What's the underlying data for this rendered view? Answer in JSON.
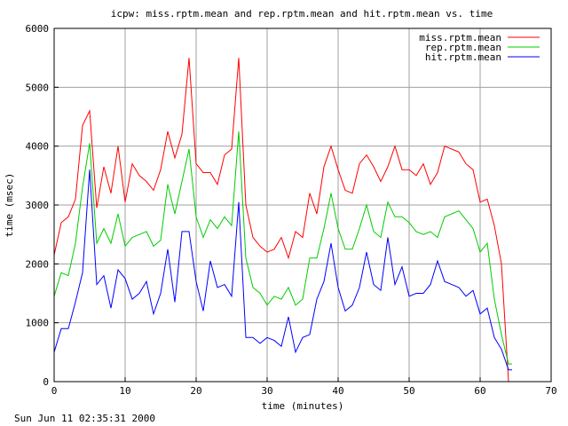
{
  "chart_data": {
    "type": "line",
    "title": "icpw: miss.rptm.mean and rep.rptm.mean and hit.rptm.mean vs. time",
    "xlabel": "time (minutes)",
    "ylabel": "time (msec)",
    "xlim": [
      0,
      70
    ],
    "ylim": [
      0,
      6000
    ],
    "xticks": [
      0,
      10,
      20,
      30,
      40,
      50,
      60,
      70
    ],
    "yticks": [
      0,
      1000,
      2000,
      3000,
      4000,
      5000,
      6000
    ],
    "grid": true,
    "legend_position": "top-right",
    "footer": "Sun Jun 11 02:35:31 2000",
    "series": [
      {
        "name": "miss.rptm.mean",
        "color": "#ff0000",
        "x": [
          0,
          1,
          2,
          3,
          4,
          5,
          6,
          7,
          8,
          9,
          10,
          11,
          12,
          13,
          14,
          15,
          16,
          17,
          18,
          19,
          20,
          21,
          22,
          23,
          24,
          25,
          26,
          27,
          28,
          29,
          30,
          31,
          32,
          33,
          34,
          35,
          36,
          37,
          38,
          39,
          40,
          41,
          42,
          43,
          44,
          45,
          46,
          47,
          48,
          49,
          50,
          51,
          52,
          53,
          54,
          55,
          56,
          57,
          58,
          59,
          60,
          61,
          62,
          63,
          64,
          64.5
        ],
        "values": [
          2150,
          2700,
          2800,
          3100,
          4350,
          4600,
          2950,
          3650,
          3200,
          4000,
          3050,
          3700,
          3500,
          3400,
          3250,
          3600,
          4250,
          3800,
          4200,
          5500,
          3700,
          3550,
          3550,
          3350,
          3850,
          3950,
          5500,
          3000,
          2450,
          2300,
          2200,
          2250,
          2450,
          2100,
          2550,
          2450,
          3200,
          2850,
          3650,
          4000,
          3600,
          3250,
          3200,
          3700,
          3850,
          3650,
          3400,
          3650,
          4000,
          3600,
          3600,
          3500,
          3700,
          3350,
          3550,
          4000,
          3950,
          3900,
          3700,
          3600,
          3050,
          3100,
          2650,
          2000,
          0,
          0
        ]
      },
      {
        "name": "rep.rptm.mean",
        "color": "#00cc00",
        "x": [
          0,
          1,
          2,
          3,
          4,
          5,
          6,
          7,
          8,
          9,
          10,
          11,
          12,
          13,
          14,
          15,
          16,
          17,
          18,
          19,
          20,
          21,
          22,
          23,
          24,
          25,
          26,
          27,
          28,
          29,
          30,
          31,
          32,
          33,
          34,
          35,
          36,
          37,
          38,
          39,
          40,
          41,
          42,
          43,
          44,
          45,
          46,
          47,
          48,
          49,
          50,
          51,
          52,
          53,
          54,
          55,
          56,
          57,
          58,
          59,
          60,
          61,
          62,
          63,
          64,
          64.5
        ],
        "values": [
          1450,
          1850,
          1800,
          2350,
          3300,
          4050,
          2350,
          2600,
          2350,
          2850,
          2300,
          2450,
          2500,
          2550,
          2300,
          2400,
          3350,
          2850,
          3400,
          3950,
          2800,
          2450,
          2750,
          2600,
          2800,
          2650,
          4250,
          2100,
          1600,
          1500,
          1300,
          1450,
          1400,
          1600,
          1300,
          1400,
          2100,
          2100,
          2600,
          3200,
          2600,
          2250,
          2250,
          2600,
          3000,
          2550,
          2450,
          3050,
          2800,
          2800,
          2700,
          2550,
          2500,
          2550,
          2450,
          2800,
          2850,
          2900,
          2750,
          2600,
          2200,
          2350,
          1400,
          800,
          300,
          300
        ]
      },
      {
        "name": "hit.rptm.mean",
        "color": "#0000ff",
        "x": [
          0,
          1,
          2,
          3,
          4,
          5,
          6,
          7,
          8,
          9,
          10,
          11,
          12,
          13,
          14,
          15,
          16,
          17,
          18,
          19,
          20,
          21,
          22,
          23,
          24,
          25,
          26,
          27,
          28,
          29,
          30,
          31,
          32,
          33,
          34,
          35,
          36,
          37,
          38,
          39,
          40,
          41,
          42,
          43,
          44,
          45,
          46,
          47,
          48,
          49,
          50,
          51,
          52,
          53,
          54,
          55,
          56,
          57,
          58,
          59,
          60,
          61,
          62,
          63,
          64,
          64.5
        ],
        "values": [
          500,
          900,
          900,
          1350,
          1850,
          3600,
          1650,
          1800,
          1250,
          1900,
          1750,
          1400,
          1500,
          1700,
          1150,
          1500,
          2250,
          1350,
          2550,
          2550,
          1700,
          1200,
          2050,
          1600,
          1650,
          1450,
          3050,
          750,
          750,
          650,
          750,
          700,
          600,
          1100,
          500,
          750,
          800,
          1400,
          1700,
          2350,
          1600,
          1200,
          1300,
          1600,
          2200,
          1650,
          1550,
          2450,
          1650,
          1950,
          1450,
          1500,
          1500,
          1650,
          2050,
          1700,
          1650,
          1600,
          1450,
          1550,
          1150,
          1250,
          750,
          550,
          200,
          200
        ]
      }
    ]
  }
}
